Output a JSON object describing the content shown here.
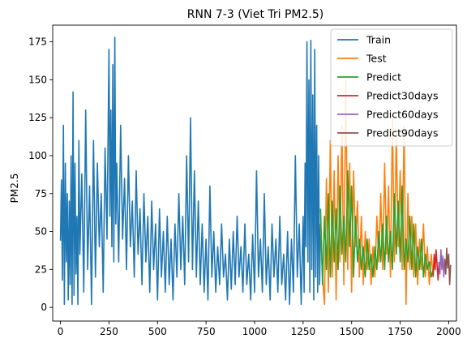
{
  "chart_data": {
    "type": "line",
    "title": "RNN 7-3 (Viet Tri PM2.5)",
    "xlabel": "",
    "ylabel": "PM2.5",
    "xlim": [
      -40,
      2040
    ],
    "ylim": [
      -9,
      186
    ],
    "x_ticks": [
      0,
      250,
      500,
      750,
      1000,
      1250,
      1500,
      1750,
      2000
    ],
    "y_ticks": [
      0,
      25,
      50,
      75,
      100,
      125,
      150,
      175
    ],
    "grid": false,
    "legend_position": "top-right",
    "series": [
      {
        "name": "Train",
        "color": "#1f77b4",
        "x": [
          0,
          5,
          10,
          15,
          20,
          25,
          30,
          35,
          40,
          45,
          50,
          55,
          60,
          65,
          70,
          75,
          80,
          85,
          90,
          95,
          100,
          110,
          120,
          130,
          140,
          150,
          160,
          170,
          180,
          190,
          200,
          210,
          220,
          230,
          240,
          250,
          255,
          260,
          265,
          270,
          275,
          280,
          285,
          290,
          300,
          310,
          320,
          330,
          340,
          350,
          360,
          370,
          380,
          390,
          400,
          410,
          420,
          430,
          440,
          450,
          460,
          470,
          480,
          490,
          500,
          510,
          520,
          530,
          540,
          550,
          560,
          570,
          580,
          590,
          600,
          610,
          620,
          630,
          640,
          650,
          660,
          670,
          680,
          690,
          700,
          710,
          720,
          730,
          740,
          750,
          760,
          770,
          780,
          790,
          800,
          810,
          820,
          830,
          840,
          850,
          860,
          870,
          880,
          890,
          900,
          910,
          920,
          930,
          940,
          950,
          960,
          970,
          980,
          990,
          1000,
          1010,
          1020,
          1030,
          1040,
          1050,
          1060,
          1070,
          1080,
          1090,
          1100,
          1110,
          1120,
          1130,
          1140,
          1150,
          1160,
          1170,
          1180,
          1190,
          1200,
          1210,
          1220,
          1230,
          1240,
          1250,
          1255,
          1260,
          1265,
          1270,
          1275,
          1280,
          1285,
          1290,
          1295,
          1300,
          1305,
          1310,
          1315,
          1320,
          1325,
          1330,
          1335,
          1340
        ],
        "y": [
          44,
          84,
          18,
          120,
          2,
          95,
          30,
          75,
          5,
          70,
          15,
          100,
          2,
          142,
          8,
          95,
          22,
          60,
          2,
          110,
          35,
          88,
          10,
          130,
          25,
          80,
          2,
          110,
          20,
          95,
          40,
          75,
          10,
          105,
          45,
          170,
          60,
          130,
          40,
          160,
          30,
          178,
          55,
          95,
          30,
          120,
          45,
          85,
          25,
          100,
          40,
          70,
          20,
          90,
          35,
          65,
          15,
          75,
          30,
          60,
          10,
          70,
          25,
          55,
          5,
          65,
          20,
          50,
          10,
          60,
          15,
          45,
          5,
          55,
          20,
          75,
          25,
          60,
          15,
          100,
          30,
          125,
          25,
          90,
          20,
          70,
          15,
          55,
          10,
          45,
          5,
          80,
          20,
          50,
          10,
          40,
          15,
          55,
          20,
          35,
          5,
          45,
          12,
          50,
          15,
          60,
          20,
          40,
          10,
          55,
          15,
          35,
          5,
          48,
          10,
          90,
          20,
          45,
          10,
          75,
          15,
          40,
          5,
          55,
          20,
          45,
          10,
          60,
          15,
          35,
          5,
          50,
          2,
          45,
          10,
          100,
          20,
          55,
          2,
          60,
          10,
          95,
          40,
          175,
          30,
          150,
          10,
          176,
          25,
          140,
          5,
          170,
          20,
          120,
          10,
          100,
          15,
          55
        ]
      },
      {
        "name": "Test",
        "color": "#ff7f0e",
        "x": [
          1340,
          1350,
          1360,
          1370,
          1380,
          1390,
          1400,
          1410,
          1420,
          1430,
          1440,
          1450,
          1460,
          1470,
          1480,
          1490,
          1500,
          1510,
          1520,
          1530,
          1540,
          1550,
          1560,
          1570,
          1580,
          1590,
          1600,
          1610,
          1620,
          1630,
          1640,
          1650,
          1660,
          1670,
          1680,
          1690,
          1700,
          1710,
          1720,
          1730,
          1740,
          1750,
          1760,
          1770,
          1780,
          1790,
          1800,
          1810,
          1820,
          1830,
          1840,
          1850,
          1860,
          1870,
          1880,
          1890,
          1900,
          1910,
          1920
        ],
        "y": [
          55,
          20,
          2,
          85,
          10,
          110,
          20,
          90,
          5,
          100,
          30,
          120,
          15,
          150,
          25,
          95,
          10,
          90,
          40,
          70,
          20,
          60,
          15,
          50,
          25,
          45,
          15,
          40,
          20,
          60,
          30,
          75,
          25,
          95,
          35,
          80,
          20,
          125,
          30,
          115,
          40,
          90,
          25,
          120,
          2,
          75,
          25,
          60,
          20,
          55,
          15,
          45,
          25,
          55,
          20,
          40,
          15,
          35,
          20
        ]
      },
      {
        "name": "Predict",
        "color": "#2ca02c",
        "x": [
          1340,
          1350,
          1360,
          1370,
          1380,
          1390,
          1400,
          1410,
          1420,
          1430,
          1440,
          1450,
          1460,
          1470,
          1480,
          1490,
          1500,
          1510,
          1520,
          1530,
          1540,
          1550,
          1560,
          1570,
          1580,
          1590,
          1600,
          1610,
          1620,
          1630,
          1640,
          1650,
          1660,
          1670,
          1680,
          1690,
          1700,
          1710,
          1720,
          1730,
          1740,
          1750,
          1760,
          1770,
          1780,
          1790,
          1800,
          1810,
          1820,
          1830,
          1840,
          1850,
          1860,
          1870,
          1880,
          1890,
          1900,
          1910,
          1920
        ],
        "y": [
          65,
          15,
          60,
          25,
          75,
          20,
          70,
          30,
          65,
          25,
          80,
          35,
          60,
          30,
          90,
          40,
          80,
          20,
          60,
          30,
          45,
          25,
          40,
          20,
          45,
          25,
          35,
          20,
          40,
          25,
          50,
          30,
          55,
          25,
          60,
          30,
          50,
          25,
          75,
          35,
          70,
          30,
          80,
          25,
          45,
          30,
          60,
          25,
          55,
          20,
          40,
          25,
          45,
          20,
          35,
          25,
          30,
          20,
          25
        ]
      },
      {
        "name": "Predict30days",
        "color": "#d62728",
        "x": [
          1920,
          1925,
          1930,
          1935,
          1940,
          1945,
          1950
        ],
        "y": [
          20,
          35,
          25,
          38,
          28,
          18,
          30
        ]
      },
      {
        "name": "Predict60days",
        "color": "#9467bd",
        "x": [
          1950,
          1955,
          1960,
          1965,
          1970,
          1975,
          1980
        ],
        "y": [
          30,
          22,
          38,
          25,
          34,
          20,
          32
        ]
      },
      {
        "name": "Predict90days",
        "color": "#8c564b",
        "x": [
          1980,
          1985,
          1990,
          1995,
          2000,
          2005,
          2010
        ],
        "y": [
          32,
          22,
          39,
          26,
          35,
          15,
          28
        ]
      }
    ]
  }
}
